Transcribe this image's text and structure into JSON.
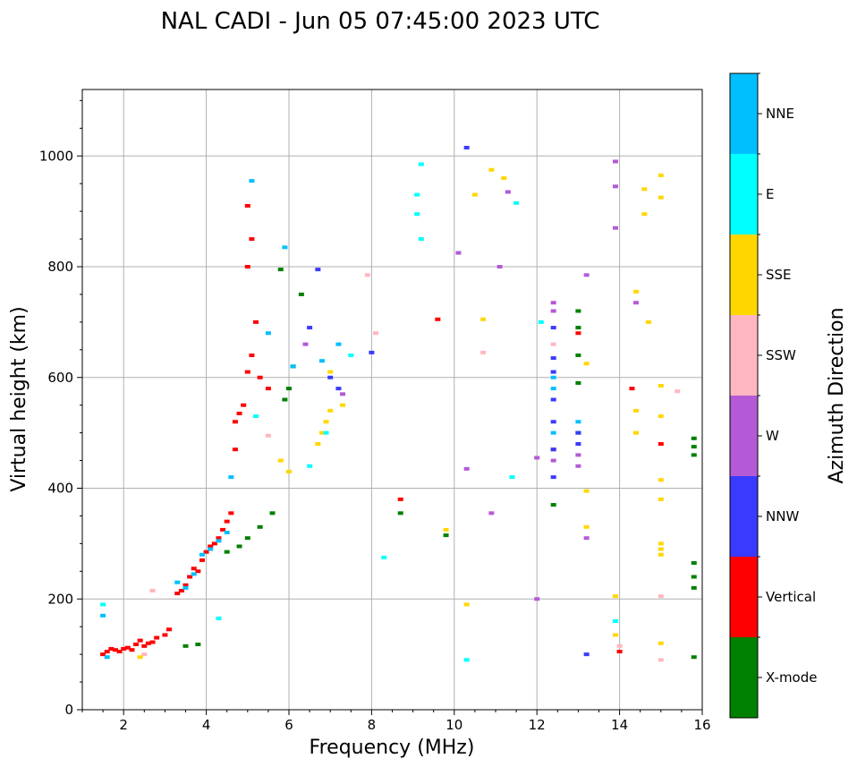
{
  "chart_data": {
    "type": "scatter",
    "title": "NAL CADI - Jun 05 07:45:00 2023 UTC",
    "xlabel": "Frequency (MHz)",
    "ylabel": "Virtual height (km)",
    "xlim": [
      1,
      16
    ],
    "ylim": [
      0,
      1120
    ],
    "xticks": [
      2,
      4,
      6,
      8,
      10,
      12,
      14,
      16
    ],
    "yticks": [
      0,
      200,
      400,
      600,
      800,
      1000
    ],
    "grid": true,
    "colorbar": {
      "label": "Azimuth Direction",
      "categories": [
        {
          "name": "X-mode",
          "color": "#008000"
        },
        {
          "name": "Vertical",
          "color": "#ff0000"
        },
        {
          "name": "NNW",
          "color": "#3a3aff"
        },
        {
          "name": "W",
          "color": "#b45ad6"
        },
        {
          "name": "SSW",
          "color": "#ffb6c1"
        },
        {
          "name": "SSE",
          "color": "#ffd700"
        },
        {
          "name": "E",
          "color": "#00ffff"
        },
        {
          "name": "NNE",
          "color": "#00bfff"
        }
      ]
    },
    "series": [
      {
        "name": "Vertical",
        "points": [
          [
            1.5,
            100
          ],
          [
            1.6,
            105
          ],
          [
            1.7,
            110
          ],
          [
            1.8,
            108
          ],
          [
            1.9,
            105
          ],
          [
            2.0,
            110
          ],
          [
            2.1,
            112
          ],
          [
            2.2,
            108
          ],
          [
            2.3,
            118
          ],
          [
            2.4,
            125
          ],
          [
            2.5,
            115
          ],
          [
            2.6,
            120
          ],
          [
            2.7,
            122
          ],
          [
            2.8,
            130
          ],
          [
            3.0,
            135
          ],
          [
            3.1,
            145
          ],
          [
            3.3,
            210
          ],
          [
            3.4,
            215
          ],
          [
            3.5,
            225
          ],
          [
            3.6,
            240
          ],
          [
            3.7,
            255
          ],
          [
            3.8,
            250
          ],
          [
            3.9,
            270
          ],
          [
            4.0,
            285
          ],
          [
            4.1,
            295
          ],
          [
            4.2,
            300
          ],
          [
            4.3,
            310
          ],
          [
            4.4,
            325
          ],
          [
            4.5,
            340
          ],
          [
            4.6,
            355
          ],
          [
            4.7,
            470
          ],
          [
            4.7,
            520
          ],
          [
            4.8,
            535
          ],
          [
            4.9,
            550
          ],
          [
            5.0,
            610
          ],
          [
            5.1,
            640
          ],
          [
            5.0,
            800
          ],
          [
            5.2,
            700
          ],
          [
            5.0,
            910
          ],
          [
            5.1,
            850
          ],
          [
            5.3,
            600
          ],
          [
            5.5,
            580
          ],
          [
            9.6,
            705
          ],
          [
            8.7,
            380
          ],
          [
            12.4,
            470
          ],
          [
            13.0,
            680
          ],
          [
            14.0,
            105
          ],
          [
            14.3,
            580
          ],
          [
            15.0,
            480
          ]
        ]
      },
      {
        "name": "X-mode",
        "points": [
          [
            3.5,
            115
          ],
          [
            3.8,
            118
          ],
          [
            4.5,
            285
          ],
          [
            4.8,
            295
          ],
          [
            5.0,
            310
          ],
          [
            5.3,
            330
          ],
          [
            5.6,
            355
          ],
          [
            5.9,
            560
          ],
          [
            6.0,
            580
          ],
          [
            6.1,
            620
          ],
          [
            6.3,
            750
          ],
          [
            5.8,
            795
          ],
          [
            8.7,
            355
          ],
          [
            9.8,
            315
          ],
          [
            12.4,
            370
          ],
          [
            13.0,
            720
          ],
          [
            13.0,
            690
          ],
          [
            13.0,
            500
          ],
          [
            13.0,
            590
          ],
          [
            13.0,
            640
          ],
          [
            15.8,
            95
          ],
          [
            15.8,
            220
          ],
          [
            15.8,
            240
          ],
          [
            15.8,
            265
          ],
          [
            15.8,
            460
          ],
          [
            15.8,
            475
          ],
          [
            15.8,
            490
          ]
        ]
      },
      {
        "name": "NNW",
        "points": [
          [
            6.5,
            690
          ],
          [
            6.7,
            795
          ],
          [
            7.0,
            600
          ],
          [
            7.2,
            580
          ],
          [
            8.0,
            645
          ],
          [
            12.4,
            420
          ],
          [
            12.4,
            470
          ],
          [
            12.4,
            520
          ],
          [
            12.4,
            560
          ],
          [
            12.4,
            610
          ],
          [
            12.4,
            635
          ],
          [
            12.4,
            690
          ],
          [
            13.0,
            500
          ],
          [
            13.2,
            100
          ],
          [
            13.0,
            480
          ],
          [
            10.3,
            1015
          ]
        ]
      },
      {
        "name": "W",
        "points": [
          [
            6.4,
            660
          ],
          [
            7.3,
            570
          ],
          [
            10.1,
            825
          ],
          [
            10.3,
            435
          ],
          [
            10.9,
            355
          ],
          [
            11.1,
            800
          ],
          [
            11.3,
            935
          ],
          [
            12.0,
            455
          ],
          [
            12.4,
            720
          ],
          [
            12.4,
            735
          ],
          [
            12.4,
            450
          ],
          [
            13.0,
            460
          ],
          [
            13.0,
            440
          ],
          [
            13.2,
            785
          ],
          [
            13.2,
            310
          ],
          [
            13.9,
            990
          ],
          [
            13.9,
            945
          ],
          [
            13.9,
            870
          ],
          [
            14.4,
            735
          ],
          [
            12.0,
            200
          ]
        ]
      },
      {
        "name": "SSW",
        "points": [
          [
            2.5,
            100
          ],
          [
            2.7,
            215
          ],
          [
            5.5,
            495
          ],
          [
            7.9,
            785
          ],
          [
            8.1,
            680
          ],
          [
            10.7,
            645
          ],
          [
            12.4,
            660
          ],
          [
            14.0,
            115
          ],
          [
            15.0,
            205
          ],
          [
            15.0,
            90
          ],
          [
            15.4,
            575
          ]
        ]
      },
      {
        "name": "SSE",
        "points": [
          [
            5.8,
            450
          ],
          [
            6.0,
            430
          ],
          [
            6.7,
            480
          ],
          [
            6.8,
            500
          ],
          [
            6.9,
            520
          ],
          [
            7.0,
            540
          ],
          [
            7.0,
            610
          ],
          [
            7.3,
            550
          ],
          [
            2.4,
            95
          ],
          [
            10.3,
            190
          ],
          [
            10.5,
            930
          ],
          [
            10.7,
            705
          ],
          [
            10.9,
            975
          ],
          [
            11.2,
            960
          ],
          [
            13.2,
            625
          ],
          [
            13.2,
            395
          ],
          [
            13.2,
            330
          ],
          [
            13.9,
            205
          ],
          [
            13.9,
            135
          ],
          [
            14.4,
            755
          ],
          [
            14.4,
            540
          ],
          [
            14.4,
            500
          ],
          [
            14.6,
            940
          ],
          [
            14.6,
            895
          ],
          [
            14.7,
            700
          ],
          [
            15.0,
            965
          ],
          [
            15.0,
            925
          ],
          [
            15.0,
            585
          ],
          [
            15.0,
            530
          ],
          [
            15.0,
            415
          ],
          [
            15.0,
            380
          ],
          [
            15.0,
            300
          ],
          [
            15.0,
            290
          ],
          [
            15.0,
            280
          ],
          [
            15.0,
            120
          ],
          [
            9.8,
            325
          ]
        ]
      },
      {
        "name": "E",
        "points": [
          [
            1.5,
            190
          ],
          [
            4.3,
            165
          ],
          [
            5.2,
            530
          ],
          [
            6.5,
            440
          ],
          [
            6.9,
            500
          ],
          [
            7.5,
            640
          ],
          [
            9.1,
            930
          ],
          [
            9.1,
            895
          ],
          [
            9.2,
            850
          ],
          [
            9.2,
            985
          ],
          [
            8.3,
            275
          ],
          [
            10.3,
            90
          ],
          [
            11.4,
            420
          ],
          [
            11.5,
            915
          ],
          [
            12.1,
            700
          ],
          [
            13.9,
            160
          ]
        ]
      },
      {
        "name": "NNE",
        "points": [
          [
            1.5,
            170
          ],
          [
            1.6,
            95
          ],
          [
            3.3,
            230
          ],
          [
            3.5,
            220
          ],
          [
            3.7,
            245
          ],
          [
            3.9,
            280
          ],
          [
            4.1,
            290
          ],
          [
            4.3,
            305
          ],
          [
            4.5,
            320
          ],
          [
            4.6,
            420
          ],
          [
            5.1,
            955
          ],
          [
            5.5,
            680
          ],
          [
            5.9,
            835
          ],
          [
            6.1,
            620
          ],
          [
            6.8,
            630
          ],
          [
            7.2,
            660
          ],
          [
            12.4,
            580
          ],
          [
            12.4,
            600
          ],
          [
            12.4,
            500
          ],
          [
            13.0,
            520
          ]
        ]
      }
    ]
  }
}
